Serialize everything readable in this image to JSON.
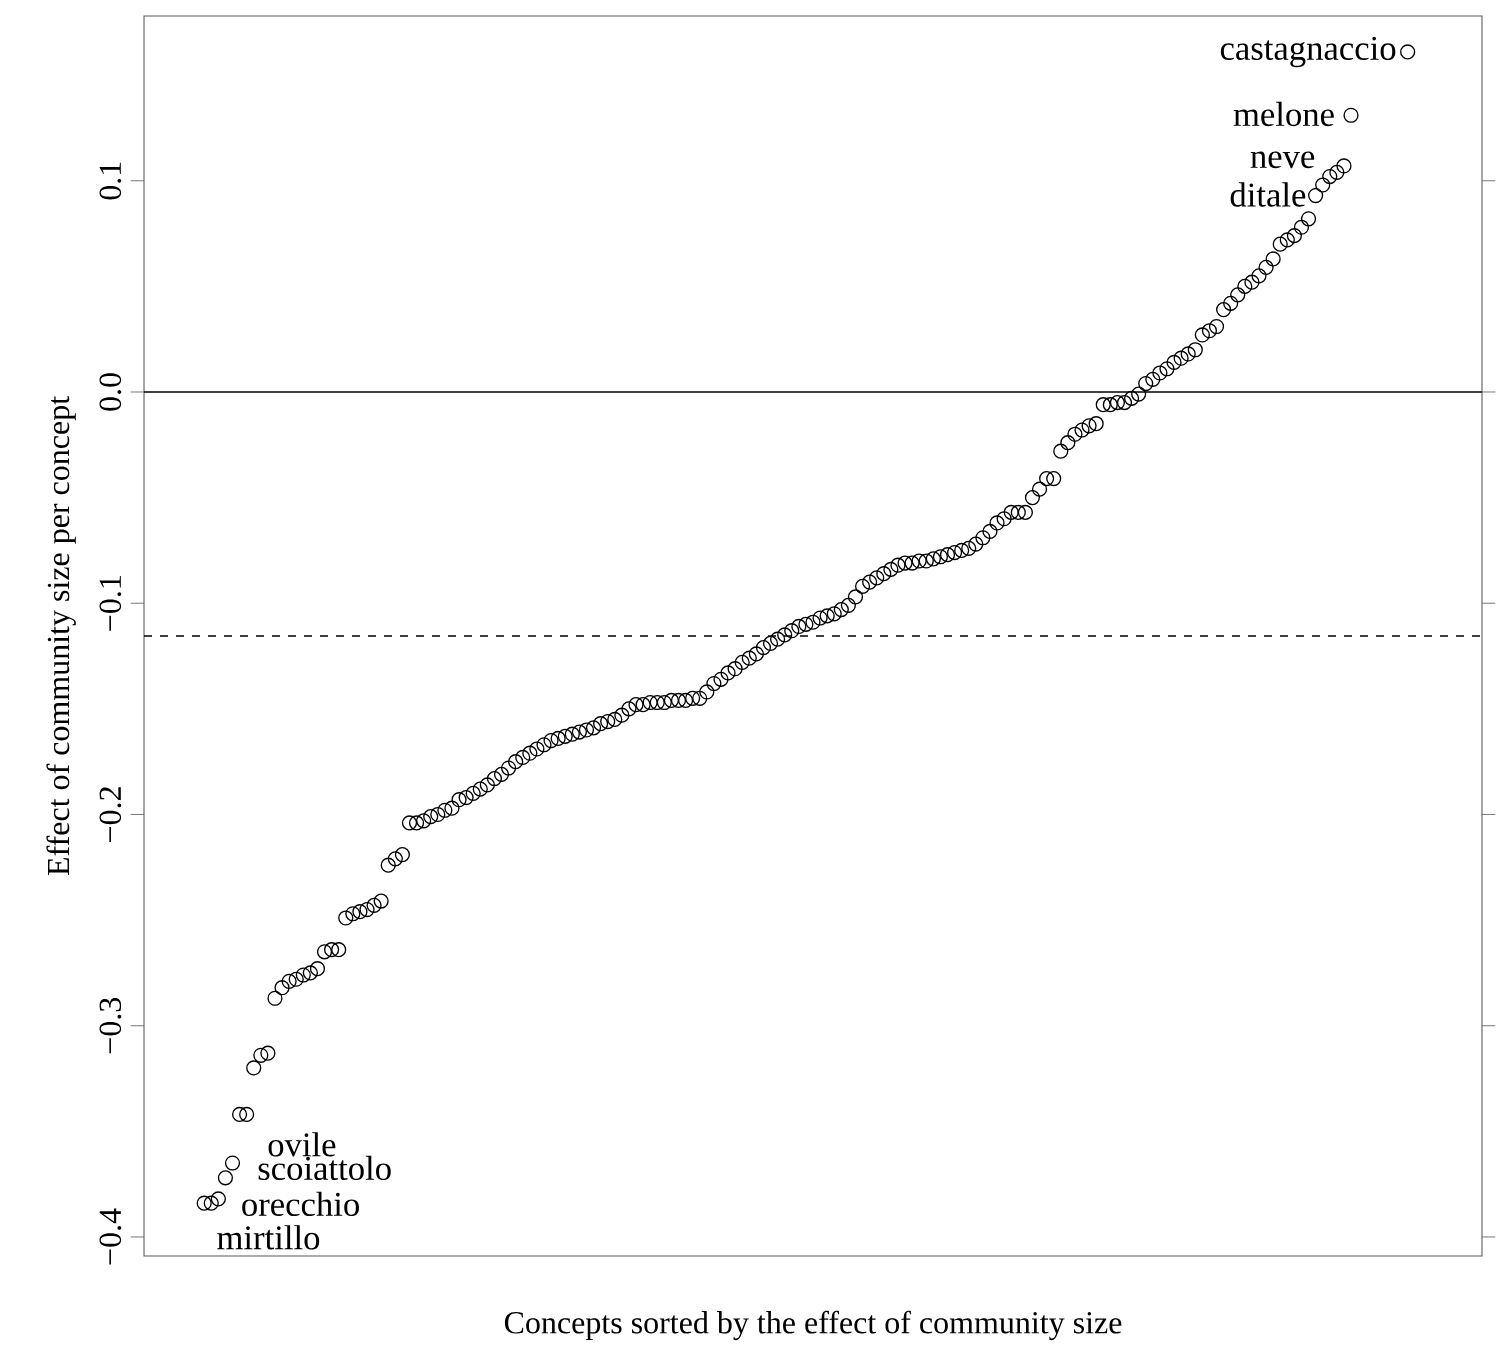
{
  "chart_data": {
    "type": "scatter",
    "xlabel": "Concepts sorted by the effect of community size",
    "ylabel": "Effect of community size per concept",
    "categories": [
      null,
      null,
      null,
      null,
      null,
      null,
      null,
      null,
      null,
      null,
      null,
      null,
      null,
      null,
      null,
      null,
      null,
      null,
      null,
      null,
      null,
      null,
      null,
      null,
      null,
      null,
      null,
      null,
      null,
      null,
      null,
      null,
      null,
      null,
      null,
      null,
      null,
      null,
      null,
      null,
      null,
      null,
      null,
      null,
      null,
      null,
      null,
      null,
      null,
      null,
      null,
      null,
      null,
      null,
      null,
      null,
      null,
      null,
      null,
      null,
      null,
      null,
      null,
      null,
      null,
      null,
      null,
      null,
      null,
      null,
      null,
      null,
      null,
      null,
      null,
      null,
      null,
      null,
      null,
      null,
      null,
      null,
      null,
      null,
      null,
      null,
      null,
      null,
      null,
      null,
      null,
      null,
      null,
      null,
      null,
      null,
      null,
      null,
      null,
      null,
      null,
      null,
      null,
      null,
      null,
      null,
      null,
      null,
      null,
      null,
      null,
      null,
      null,
      null,
      null,
      null,
      null,
      null,
      null,
      null,
      null,
      null,
      null,
      null,
      null,
      null,
      null,
      null,
      null,
      null,
      null,
      null,
      null,
      null,
      null,
      null,
      null,
      null,
      null,
      null,
      null,
      null,
      null,
      null,
      null,
      null,
      null,
      null,
      null,
      null,
      null,
      null,
      null,
      null,
      null,
      null,
      null,
      null,
      null,
      null,
      null,
      null,
      null,
      null,
      null,
      null,
      null,
      null,
      null,
      null,
      null,
      null,
      null,
      null,
      null,
      null,
      null,
      null,
      null,
      null,
      null,
      null,
      null,
      null,
      null,
      null,
      null,
      null,
      null
    ],
    "series": [
      {
        "color": "#000000",
        "values": [
          null,
          null,
          null,
          null,
          null,
          null,
          null,
          null,
          -0.384,
          -0.384,
          -0.382,
          -0.372,
          -0.365,
          -0.342,
          -0.342,
          -0.32,
          -0.314,
          -0.313,
          -0.287,
          -0.282,
          -0.279,
          -0.278,
          -0.276,
          -0.275,
          -0.273,
          -0.265,
          -0.264,
          -0.264,
          -0.249,
          -0.247,
          -0.246,
          -0.245,
          -0.243,
          -0.241,
          -0.224,
          -0.221,
          -0.219,
          -0.204,
          -0.204,
          -0.203,
          -0.201,
          -0.2,
          -0.198,
          -0.197,
          -0.193,
          -0.192,
          -0.19,
          -0.188,
          -0.186,
          -0.183,
          -0.181,
          -0.178,
          -0.175,
          -0.173,
          -0.171,
          -0.169,
          -0.167,
          -0.165,
          -0.164,
          -0.163,
          -0.162,
          -0.161,
          -0.16,
          -0.159,
          -0.157,
          -0.156,
          -0.155,
          -0.153,
          -0.15,
          -0.148,
          -0.148,
          -0.147,
          -0.147,
          -0.147,
          -0.146,
          -0.146,
          -0.146,
          -0.145,
          -0.145,
          -0.142,
          -0.138,
          -0.136,
          -0.133,
          -0.131,
          -0.128,
          -0.126,
          -0.124,
          -0.121,
          -0.119,
          -0.117,
          -0.115,
          -0.113,
          -0.111,
          -0.11,
          -0.109,
          -0.107,
          -0.106,
          -0.105,
          -0.103,
          -0.101,
          -0.097,
          -0.092,
          -0.09,
          -0.088,
          -0.086,
          -0.084,
          -0.082,
          -0.081,
          -0.081,
          -0.08,
          -0.08,
          -0.079,
          -0.078,
          -0.077,
          -0.076,
          -0.075,
          -0.074,
          -0.072,
          -0.069,
          -0.066,
          -0.062,
          -0.06,
          -0.057,
          -0.057,
          -0.057,
          -0.05,
          -0.046,
          -0.041,
          -0.041,
          -0.028,
          -0.024,
          -0.02,
          -0.018,
          -0.016,
          -0.015,
          -0.006,
          -0.006,
          -0.005,
          -0.005,
          -0.003,
          -0.001,
          0.004,
          0.006,
          0.009,
          0.011,
          0.014,
          0.016,
          0.018,
          0.02,
          0.027,
          0.029,
          0.031,
          0.039,
          0.042,
          0.046,
          0.05,
          0.052,
          0.055,
          0.059,
          0.063,
          0.07,
          0.072,
          0.074,
          0.078,
          0.082,
          0.093,
          0.098,
          0.102,
          0.104,
          0.107,
          0.131,
          null,
          null,
          null,
          null,
          null,
          null,
          null,
          0.161,
          null,
          null,
          null,
          null,
          null,
          null,
          null,
          null,
          null,
          null
        ]
      }
    ],
    "marker": "circle",
    "ylim": [
      -0.409,
      0.178
    ],
    "yticks": [
      {
        "value": -0.4,
        "label": "−0.4"
      },
      {
        "value": -0.3,
        "label": "−0.3"
      },
      {
        "value": -0.2,
        "label": "−0.2"
      },
      {
        "value": -0.1,
        "label": "−0.1"
      },
      {
        "value": 0,
        "label": "0.0"
      },
      {
        "value": 0.1,
        "label": "0.1"
      }
    ],
    "tick_labels": "y",
    "ref_lines": [
      {
        "axis": "y",
        "value": 0,
        "line_style": "solid"
      },
      {
        "axis": "y",
        "value": -0.1155,
        "line_style": "dashed"
      }
    ],
    "annotations": [
      "castagnaccio",
      "melone",
      "neve",
      "ditale",
      "ovile",
      "scoiattolo",
      "orecchio",
      "mirtillo"
    ]
  }
}
